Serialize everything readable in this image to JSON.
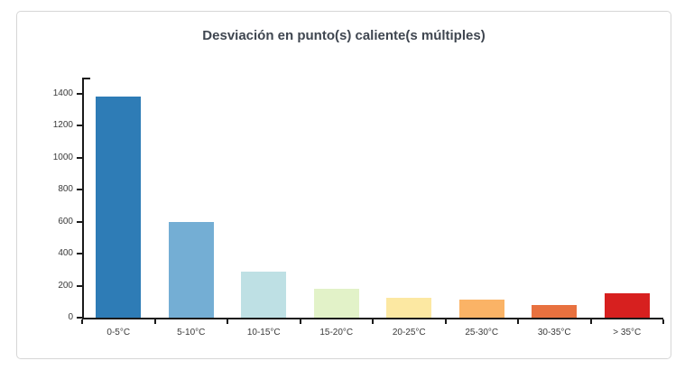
{
  "chart_data": {
    "type": "bar",
    "title": "Desviación en punto(s) caliente(s múltiples)",
    "categories": [
      "0-5°C",
      "5-10°C",
      "10-15°C",
      "15-20°C",
      "20-25°C",
      "25-30°C",
      "30-35°C",
      "> 35°C"
    ],
    "values": [
      1380,
      600,
      290,
      180,
      125,
      110,
      80,
      155
    ],
    "bar_colors": [
      "#2e7cb6",
      "#74aed4",
      "#bee0e4",
      "#e2f2c8",
      "#fce8a2",
      "#fab366",
      "#e8713f",
      "#d7201f"
    ],
    "xlabel": "",
    "ylabel": "",
    "ylim": [
      0,
      1500
    ],
    "y_ticks": [
      0,
      200,
      400,
      600,
      800,
      1000,
      1200,
      1400
    ],
    "grid": false,
    "legend": false,
    "axis_color": "#1a1a1a",
    "title_color": "#3f4650",
    "tick_label_color": "#3a3a3a"
  }
}
